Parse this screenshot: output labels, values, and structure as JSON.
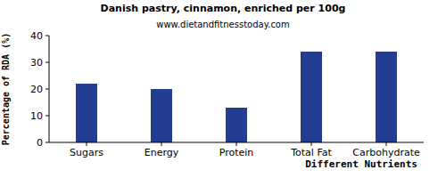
{
  "chart_data": {
    "type": "bar",
    "title": "Danish pastry, cinnamon, enriched per 100g",
    "subtitle": "www.dietandfitnesstoday.com",
    "x_label": "Different Nutrients",
    "y_label": "Percentage of RDA (%)",
    "categories": [
      "Sugars",
      "Energy",
      "Protein",
      "Total Fat",
      "Carbohydrate"
    ],
    "values": [
      22,
      20,
      13,
      34,
      34
    ],
    "color": "#233e90",
    "ylim": [
      0,
      40
    ],
    "yticks": [
      0,
      10,
      20,
      30,
      40
    ],
    "grid": false
  }
}
